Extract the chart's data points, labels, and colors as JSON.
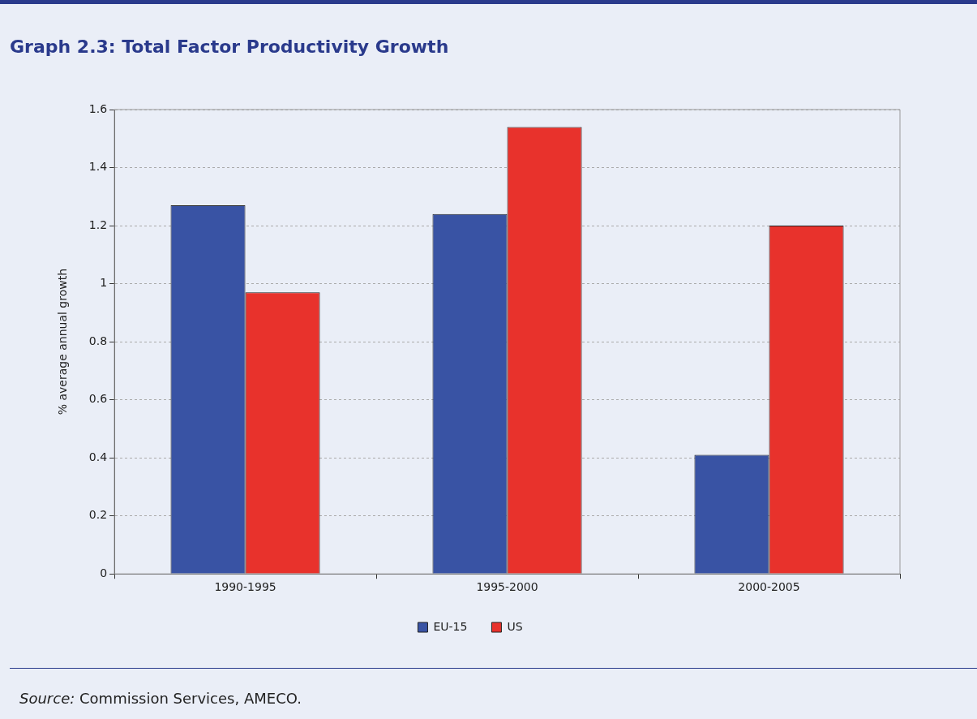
{
  "chart_data": {
    "type": "bar",
    "title": "Graph 2.3: Total Factor Productivity Growth",
    "ylabel": "% average annual growth",
    "categories": [
      "1990-1995",
      "1995-2000",
      "2000-2005"
    ],
    "series": [
      {
        "name": "EU-15",
        "color": "#3953a4",
        "values": [
          1.27,
          1.24,
          0.41
        ]
      },
      {
        "name": "US",
        "color": "#e8322c",
        "values": [
          0.97,
          1.54,
          1.2
        ]
      }
    ],
    "ylim": [
      0,
      1.6
    ],
    "yticks": [
      0,
      0.2,
      0.4,
      0.6,
      0.8,
      1,
      1.2,
      1.4,
      1.6
    ],
    "grid": "y",
    "legend": "bottom",
    "annotations": [
      "Source: Commission Services, AMECO."
    ]
  }
}
